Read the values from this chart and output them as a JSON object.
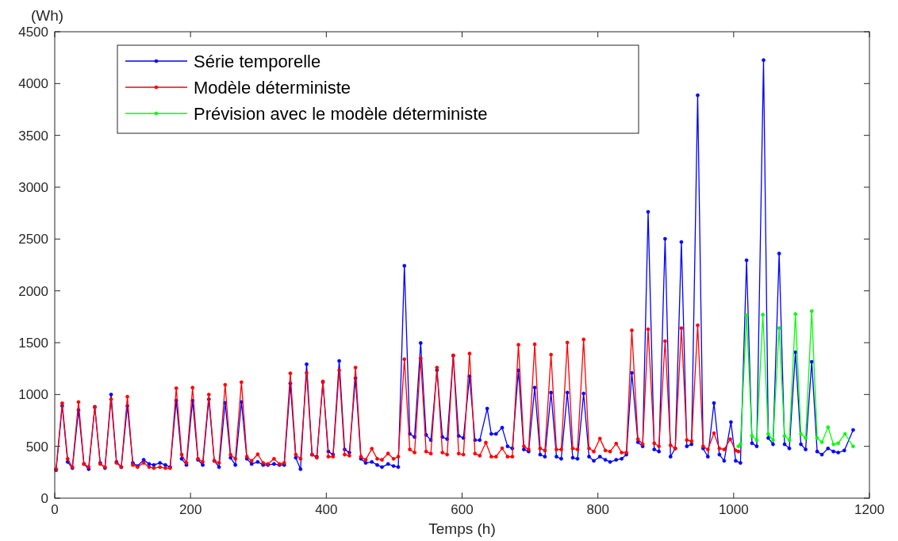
{
  "chart_data": {
    "type": "line",
    "xlabel": "Temps (h)",
    "ylabel": "(Wh)",
    "xlim": [
      0,
      1200
    ],
    "xticks": [
      0,
      200,
      400,
      600,
      800,
      1000,
      1200
    ],
    "ylim": [
      0,
      4500
    ],
    "yticks": [
      0,
      500,
      1000,
      1500,
      2000,
      2500,
      3000,
      3500,
      4000,
      4500
    ],
    "grid": false,
    "legend": "top left",
    "marker": "circle",
    "line_style": "solid",
    "series": [
      {
        "name": "Série temporelle",
        "color": "#0000ff",
        "x": [
          2,
          11,
          19,
          26,
          35,
          43,
          50,
          59,
          67,
          74,
          83,
          91,
          98,
          107,
          115,
          122,
          131,
          139,
          146,
          155,
          163,
          170,
          179,
          187,
          194,
          203,
          211,
          218,
          227,
          235,
          242,
          251,
          259,
          266,
          275,
          283,
          290,
          299,
          307,
          314,
          323,
          331,
          338,
          347,
          355,
          362,
          371,
          379,
          386,
          395,
          403,
          410,
          419,
          427,
          434,
          443,
          451,
          458,
          467,
          475,
          482,
          491,
          499,
          506,
          515,
          523,
          530,
          539,
          547,
          554,
          563,
          571,
          578,
          587,
          595,
          602,
          611,
          619,
          626,
          637,
          643,
          650,
          659,
          667,
          674,
          683,
          691,
          698,
          707,
          715,
          722,
          731,
          739,
          746,
          755,
          763,
          770,
          779,
          787,
          794,
          803,
          811,
          818,
          827,
          835,
          842,
          850,
          859,
          866,
          874,
          883,
          890,
          899,
          907,
          914,
          923,
          931,
          938,
          947,
          955,
          962,
          971,
          979,
          986,
          996,
          1003,
          1010,
          1019,
          1027,
          1034,
          1044,
          1051,
          1058,
          1067,
          1075,
          1082,
          1091,
          1099,
          1106,
          1115,
          1123,
          1130,
          1139,
          1147,
          1154,
          1163,
          1176
        ],
        "values": [
          270,
          890,
          350,
          290,
          850,
          330,
          280,
          882,
          340,
          290,
          1000,
          350,
          300,
          890,
          340,
          310,
          370,
          330,
          320,
          340,
          320,
          300,
          941,
          380,
          320,
          941,
          370,
          320,
          954,
          360,
          300,
          920,
          390,
          320,
          928,
          380,
          330,
          350,
          320,
          320,
          330,
          320,
          320,
          1107,
          390,
          280,
          1292,
          420,
          400,
          1119,
          450,
          420,
          1324,
          470,
          440,
          1158,
          380,
          340,
          350,
          320,
          300,
          330,
          310,
          300,
          2242,
          620,
          590,
          1497,
          610,
          560,
          1234,
          590,
          570,
          1376,
          600,
          580,
          1176,
          560,
          560,
          864,
          620,
          620,
          680,
          500,
          480,
          1233,
          470,
          450,
          1067,
          420,
          400,
          1018,
          400,
          380,
          1018,
          390,
          380,
          1010,
          400,
          360,
          400,
          370,
          350,
          370,
          380,
          420,
          1209,
          540,
          500,
          2762,
          470,
          450,
          2502,
          400,
          480,
          2471,
          500,
          520,
          3887,
          480,
          400,
          918,
          420,
          360,
          734,
          360,
          340,
          2295,
          530,
          500,
          4226,
          580,
          520,
          2360,
          520,
          480,
          1408,
          520,
          470,
          1316,
          450,
          420,
          480,
          450,
          440,
          460,
          658
        ]
      },
      {
        "name": "Modèle déterministe",
        "color": "#ff0000",
        "x": [
          2,
          11,
          19,
          26,
          35,
          43,
          50,
          59,
          67,
          74,
          83,
          91,
          98,
          107,
          115,
          122,
          131,
          139,
          146,
          155,
          163,
          170,
          179,
          187,
          194,
          203,
          211,
          218,
          227,
          235,
          242,
          251,
          259,
          266,
          275,
          283,
          290,
          299,
          307,
          314,
          323,
          331,
          338,
          347,
          355,
          362,
          371,
          379,
          386,
          395,
          403,
          410,
          419,
          427,
          434,
          443,
          451,
          458,
          467,
          475,
          482,
          491,
          499,
          506,
          515,
          523,
          530,
          539,
          547,
          554,
          563,
          571,
          578,
          587,
          595,
          602,
          611,
          619,
          626,
          635,
          643,
          650,
          659,
          667,
          674,
          683,
          691,
          698,
          707,
          715,
          722,
          731,
          739,
          746,
          755,
          763,
          770,
          779,
          787,
          794,
          803,
          811,
          818,
          827,
          835,
          842,
          850,
          859,
          866,
          874,
          883,
          890,
          899,
          907,
          914,
          923,
          931,
          938,
          947,
          955,
          962,
          971,
          979,
          986,
          995,
          1003,
          1007
        ],
        "values": [
          280,
          916,
          380,
          300,
          928,
          330,
          300,
          877,
          330,
          300,
          954,
          340,
          300,
          979,
          320,
          300,
          340,
          300,
          290,
          300,
          290,
          290,
          1061,
          420,
          340,
          1066,
          380,
          350,
          1000,
          360,
          340,
          1094,
          420,
          380,
          1119,
          400,
          360,
          423,
          340,
          330,
          380,
          330,
          340,
          1204,
          420,
          380,
          1209,
          420,
          390,
          1127,
          400,
          400,
          1234,
          420,
          410,
          1260,
          400,
          370,
          477,
          380,
          370,
          431,
          380,
          400,
          1341,
          470,
          440,
          1349,
          450,
          430,
          1260,
          440,
          420,
          1376,
          430,
          420,
          1395,
          430,
          410,
          536,
          400,
          400,
          482,
          400,
          400,
          1480,
          500,
          470,
          1485,
          480,
          460,
          1385,
          470,
          470,
          1501,
          480,
          470,
          1531,
          480,
          450,
          575,
          460,
          450,
          527,
          440,
          440,
          1619,
          570,
          520,
          1630,
          530,
          500,
          1515,
          510,
          480,
          1640,
          560,
          550,
          1668,
          500,
          470,
          627,
          480,
          470,
          569,
          460,
          450
        ]
      },
      {
        "name": "Prévision avec le modèle déterministe",
        "color": "#00ff00",
        "x": [
          1007,
          1010,
          1019,
          1027,
          1034,
          1043,
          1051,
          1058,
          1067,
          1075,
          1082,
          1091,
          1099,
          1106,
          1115,
          1123,
          1130,
          1139,
          1147,
          1154,
          1164,
          1176
        ],
        "values": [
          500,
          520,
          1764,
          600,
          560,
          1770,
          620,
          560,
          1640,
          600,
          560,
          1777,
          620,
          580,
          1805,
          580,
          540,
          684,
          520,
          530,
          620,
          500
        ]
      }
    ]
  }
}
